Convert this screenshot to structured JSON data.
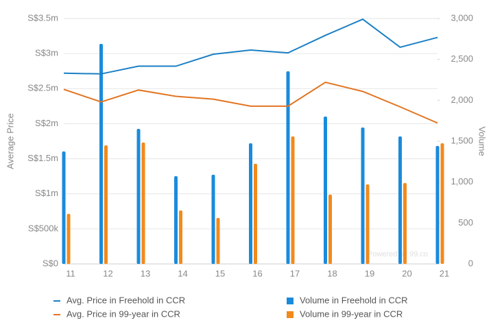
{
  "chart_data": {
    "type": "bar",
    "categories": [
      "11",
      "12",
      "13",
      "14",
      "15",
      "16",
      "17",
      "18",
      "19",
      "20",
      "21"
    ],
    "y_label": "Average Price",
    "y2_label": "Volume",
    "ylim": [
      0,
      3500000
    ],
    "yticks": [
      {
        "value": 0,
        "label": "S$0"
      },
      {
        "value": 500000,
        "label": "S$500k"
      },
      {
        "value": 1000000,
        "label": "S$1m"
      },
      {
        "value": 1500000,
        "label": "S$1.5m"
      },
      {
        "value": 2000000,
        "label": "S$2m"
      },
      {
        "value": 2500000,
        "label": "S$2.5m"
      },
      {
        "value": 3000000,
        "label": "S$3m"
      },
      {
        "value": 3500000,
        "label": "S$3.5m"
      }
    ],
    "y2lim": [
      0,
      3000
    ],
    "y2ticks": [
      0,
      500,
      {
        "value": 1000,
        "label": "1,000"
      },
      {
        "value": 1500,
        "label": "1,500"
      },
      {
        "value": 2000,
        "label": "2,000"
      },
      {
        "value": 2500,
        "label": "2,500"
      },
      {
        "value": 3000,
        "label": "3,000"
      }
    ],
    "grid": true,
    "watermark": "Powered by 99.co",
    "series": [
      {
        "name": "Avg. Price in Freehold in CCR",
        "type": "line",
        "color": "#1a7fc4",
        "values": [
          2720000,
          2710000,
          2820000,
          2820000,
          2990000,
          3050000,
          3010000,
          3260000,
          3490000,
          3090000,
          3230000
        ]
      },
      {
        "name": "Avg. Price in 99-year in CCR",
        "type": "line",
        "color": "#e27420",
        "values": [
          2490000,
          2310000,
          2480000,
          2390000,
          2350000,
          2250000,
          2250000,
          2590000,
          2460000,
          2240000,
          2010000
        ]
      },
      {
        "name": "Volume in Freehold in CCR",
        "type": "bar",
        "axis": "y2",
        "color": "#1a8bdc",
        "values": [
          1375,
          2690,
          1651,
          1073,
          1090,
          1475,
          2355,
          1802,
          1668,
          1559,
          1442
        ]
      },
      {
        "name": "Volume in 99-year in CCR",
        "type": "bar",
        "axis": "y2",
        "color": "#f28a1c",
        "values": [
          612,
          1450,
          1484,
          654,
          562,
          1224,
          1559,
          847,
          972,
          989,
          1475
        ]
      }
    ]
  }
}
